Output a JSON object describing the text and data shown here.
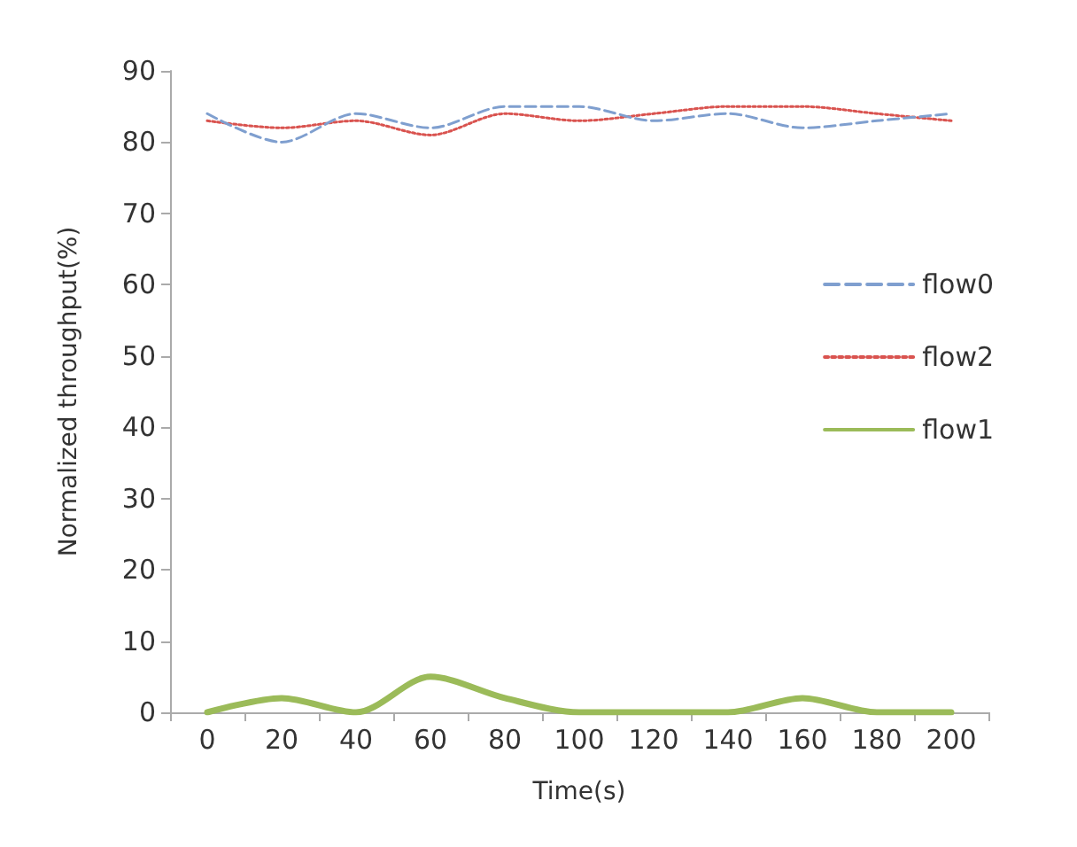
{
  "chart_data": {
    "type": "line",
    "xlabel": "Time(s)",
    "ylabel": "Normalized throughput(%)",
    "categories": [
      "0",
      "20",
      "40",
      "60",
      "80",
      "100",
      "120",
      "140",
      "160",
      "180",
      "200"
    ],
    "ylim": [
      0,
      90
    ],
    "yticks": [
      0,
      10,
      20,
      30,
      40,
      50,
      60,
      70,
      80,
      90
    ],
    "grid": false,
    "legend": "right",
    "marker": "none",
    "series": [
      {
        "name": "flow0",
        "color": "#7f9fcf",
        "line_style": "dashed",
        "values": [
          84,
          80,
          84,
          82,
          85,
          85,
          83,
          84,
          82,
          83,
          84
        ]
      },
      {
        "name": "flow2",
        "color": "#d9534f",
        "line_style": "dotted",
        "values": [
          83,
          82,
          83,
          81,
          84,
          83,
          84,
          85,
          85,
          84,
          83
        ]
      },
      {
        "name": "flow1",
        "color": "#9bbb59",
        "line_style": "solid",
        "values": [
          0,
          2,
          0,
          5,
          2,
          0,
          0,
          0,
          2,
          0,
          0
        ]
      }
    ]
  }
}
